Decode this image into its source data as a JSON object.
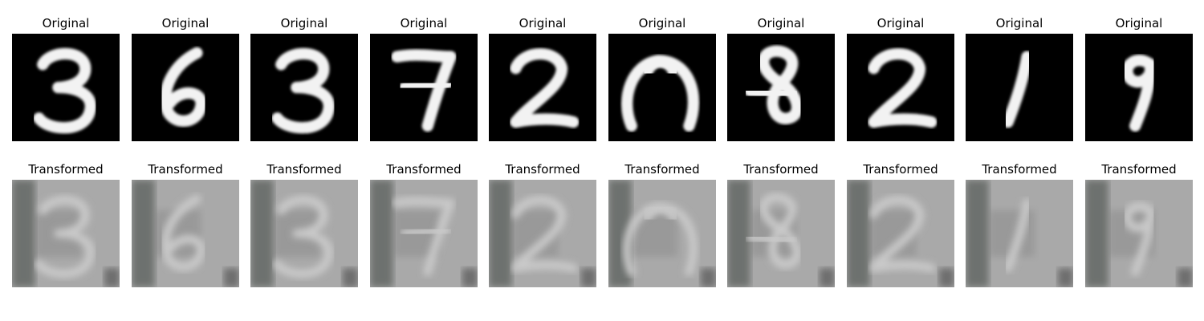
{
  "figure": {
    "rows": [
      {
        "id": "original",
        "title": "Original",
        "items": [
          {
            "digit": "3"
          },
          {
            "digit": "6"
          },
          {
            "digit": "3"
          },
          {
            "digit": "7"
          },
          {
            "digit": "2"
          },
          {
            "digit": "0"
          },
          {
            "digit": "8"
          },
          {
            "digit": "2"
          },
          {
            "digit": "1"
          },
          {
            "digit": "9"
          }
        ]
      },
      {
        "id": "transformed",
        "title": "Transformed",
        "items": [
          {
            "digit": "3"
          },
          {
            "digit": "6"
          },
          {
            "digit": "3"
          },
          {
            "digit": "7"
          },
          {
            "digit": "2"
          },
          {
            "digit": "0"
          },
          {
            "digit": "8"
          },
          {
            "digit": "2"
          },
          {
            "digit": "1"
          },
          {
            "digit": "9"
          }
        ]
      }
    ],
    "colors": {
      "original_bg": "#000000",
      "original_stroke": "#f2f2f2",
      "transformed_bg": "#a9a9a9",
      "transformed_stroke": "#c9c9c9",
      "transformed_dark_band": "#5a5f5c"
    }
  }
}
